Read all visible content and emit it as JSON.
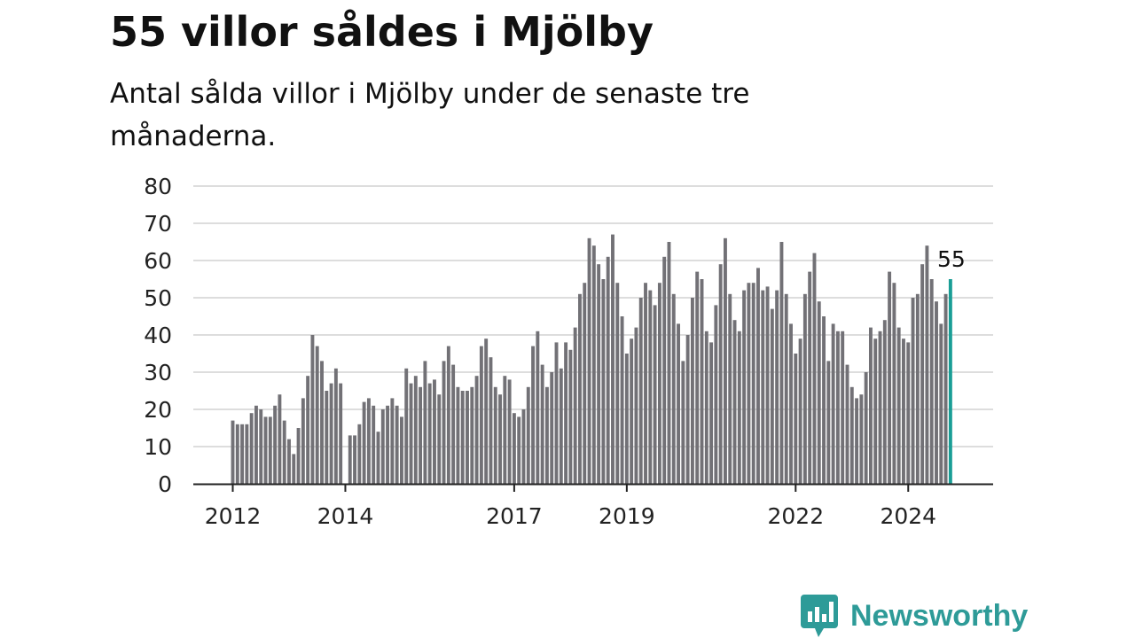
{
  "title": "55 villor såldes i Mjölby",
  "subtitle": "Antal sålda villor i Mjölby under de senaste tre månaderna.",
  "brand": {
    "name": "Newsworthy",
    "icon": "newsworthy-logo-icon"
  },
  "colors": {
    "bar": "#727176",
    "highlight": "#1a9e96",
    "grid": "#dddddd",
    "axis": "#222222",
    "brand": "#2e9b98"
  },
  "chart_data": {
    "type": "bar",
    "title": "55 villor såldes i Mjölby",
    "subtitle": "Antal sålda villor i Mjölby under de senaste tre månaderna.",
    "xlabel": "",
    "ylabel": "",
    "ylim": [
      0,
      80
    ],
    "yticks": [
      0,
      10,
      20,
      30,
      40,
      50,
      60,
      70,
      80
    ],
    "x_start": "2012-01",
    "x_end": "2024-10",
    "xticks": [
      "2012",
      "2014",
      "2017",
      "2019",
      "2022",
      "2024"
    ],
    "grid": true,
    "legend": "none",
    "highlight_label": "55",
    "series": [
      {
        "values": [
          17,
          16,
          16,
          16,
          19,
          21,
          20,
          18,
          18,
          21,
          24,
          17,
          12,
          8,
          15,
          23,
          29,
          40,
          37,
          33,
          25,
          27,
          31,
          27,
          null,
          13,
          13,
          16,
          22,
          23,
          21,
          14,
          20,
          21,
          23,
          21,
          18,
          31,
          27,
          29,
          26,
          33,
          27,
          28,
          24,
          33,
          37,
          32,
          26,
          25,
          25,
          26,
          29,
          37,
          39,
          34,
          26,
          24,
          29,
          28,
          19,
          18,
          20,
          26,
          37,
          41,
          32,
          26,
          30,
          38,
          31,
          38,
          36,
          42,
          51,
          54,
          66,
          64,
          59,
          55,
          61,
          67,
          54,
          45,
          35,
          39,
          42,
          50,
          54,
          52,
          48,
          54,
          61,
          65,
          51,
          43,
          33,
          40,
          50,
          57,
          55,
          41,
          38,
          48,
          59,
          66,
          51,
          44,
          41,
          52,
          54,
          54,
          58,
          52,
          53,
          47,
          52,
          65,
          51,
          43,
          35,
          39,
          51,
          57,
          62,
          49,
          45,
          33,
          43,
          41,
          41,
          32,
          26,
          23,
          24,
          30,
          42,
          39,
          41,
          44,
          57,
          54,
          42,
          39,
          38,
          50,
          51,
          59,
          64,
          55,
          49,
          43,
          51,
          55
        ]
      }
    ]
  }
}
